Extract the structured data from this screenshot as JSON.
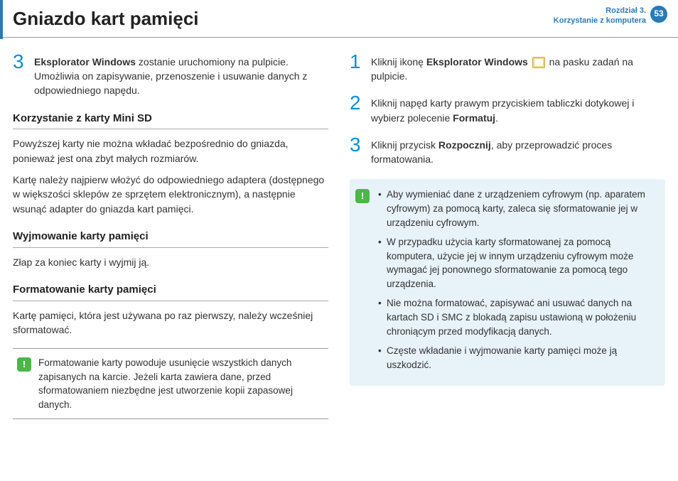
{
  "header": {
    "title": "Gniazdo kart pamięci",
    "chapter_line1": "Rozdział 3.",
    "chapter_line2": "Korzystanie z komputera",
    "page_number": "53"
  },
  "left": {
    "step3": {
      "num": "3",
      "bold": "Eksplorator Windows",
      "text": " zostanie uruchomiony na pulpicie. Umożliwia on zapisywanie, przenoszenie i usuwanie danych z odpowiedniego napędu."
    },
    "section_minisd": {
      "title": "Korzystanie z karty Mini SD",
      "p1": "Powyższej karty nie można wkładać bezpośrednio do gniazda, ponieważ jest ona zbyt małych rozmiarów.",
      "p2": "Kartę należy najpierw włożyć do odpowiedniego adaptera (dostępnego w większości sklepów ze sprzętem elektronicznym), a następnie wsunąć adapter do gniazda kart pamięci."
    },
    "section_remove": {
      "title": "Wyjmowanie karty pamięci",
      "p1": "Złap za koniec karty i wyjmij ją."
    },
    "section_format": {
      "title": "Formatowanie karty pamięci",
      "p1": "Kartę pamięci, która jest używana po raz pierwszy, należy wcześniej sformatować."
    },
    "warning": {
      "text": "Formatowanie karty powoduje usunięcie wszystkich danych zapisanych na karcie. Jeżeli karta zawiera dane, przed sformatowaniem niezbędne jest utworzenie kopii zapasowej danych."
    }
  },
  "right": {
    "step1": {
      "num": "1",
      "pre": "Kliknij ikonę ",
      "bold": "Eksplorator Windows",
      "post": " na pasku zadań na pulpicie."
    },
    "step2": {
      "num": "2",
      "pre": "Kliknij napęd karty prawym przyciskiem tabliczki dotykowej i wybierz polecenie ",
      "bold": "Formatuj",
      "post": "."
    },
    "step3": {
      "num": "3",
      "pre": "Kliknij przycisk ",
      "bold": "Rozpocznij",
      "post": ", aby przeprowadzić proces formatowania."
    },
    "info": {
      "b1": "Aby wymieniać dane z urządzeniem cyfrowym (np. aparatem cyfrowym) za pomocą karty, zaleca się sformatowanie jej w urządzeniu cyfrowym.",
      "b2": "W przypadku użycia karty sformatowanej za pomocą komputera, użycie jej w innym urządzeniu cyfrowym może wymagać jej ponownego sformatowanie za pomocą tego urządzenia.",
      "b3": "Nie można formatować, zapisywać ani usuwać danych na kartach SD i SMC z blokadą zapisu ustawioną w położeniu chroniącym przed modyfikacją danych.",
      "b4": "Częste wkładanie i wyjmowanie karty pamięci może ją uszkodzić."
    }
  },
  "colors": {
    "accent": "#2a7ab8",
    "step_num": "#0a8fd8",
    "info_bg": "#e8f2f9",
    "badge_green": "#4bb749"
  }
}
